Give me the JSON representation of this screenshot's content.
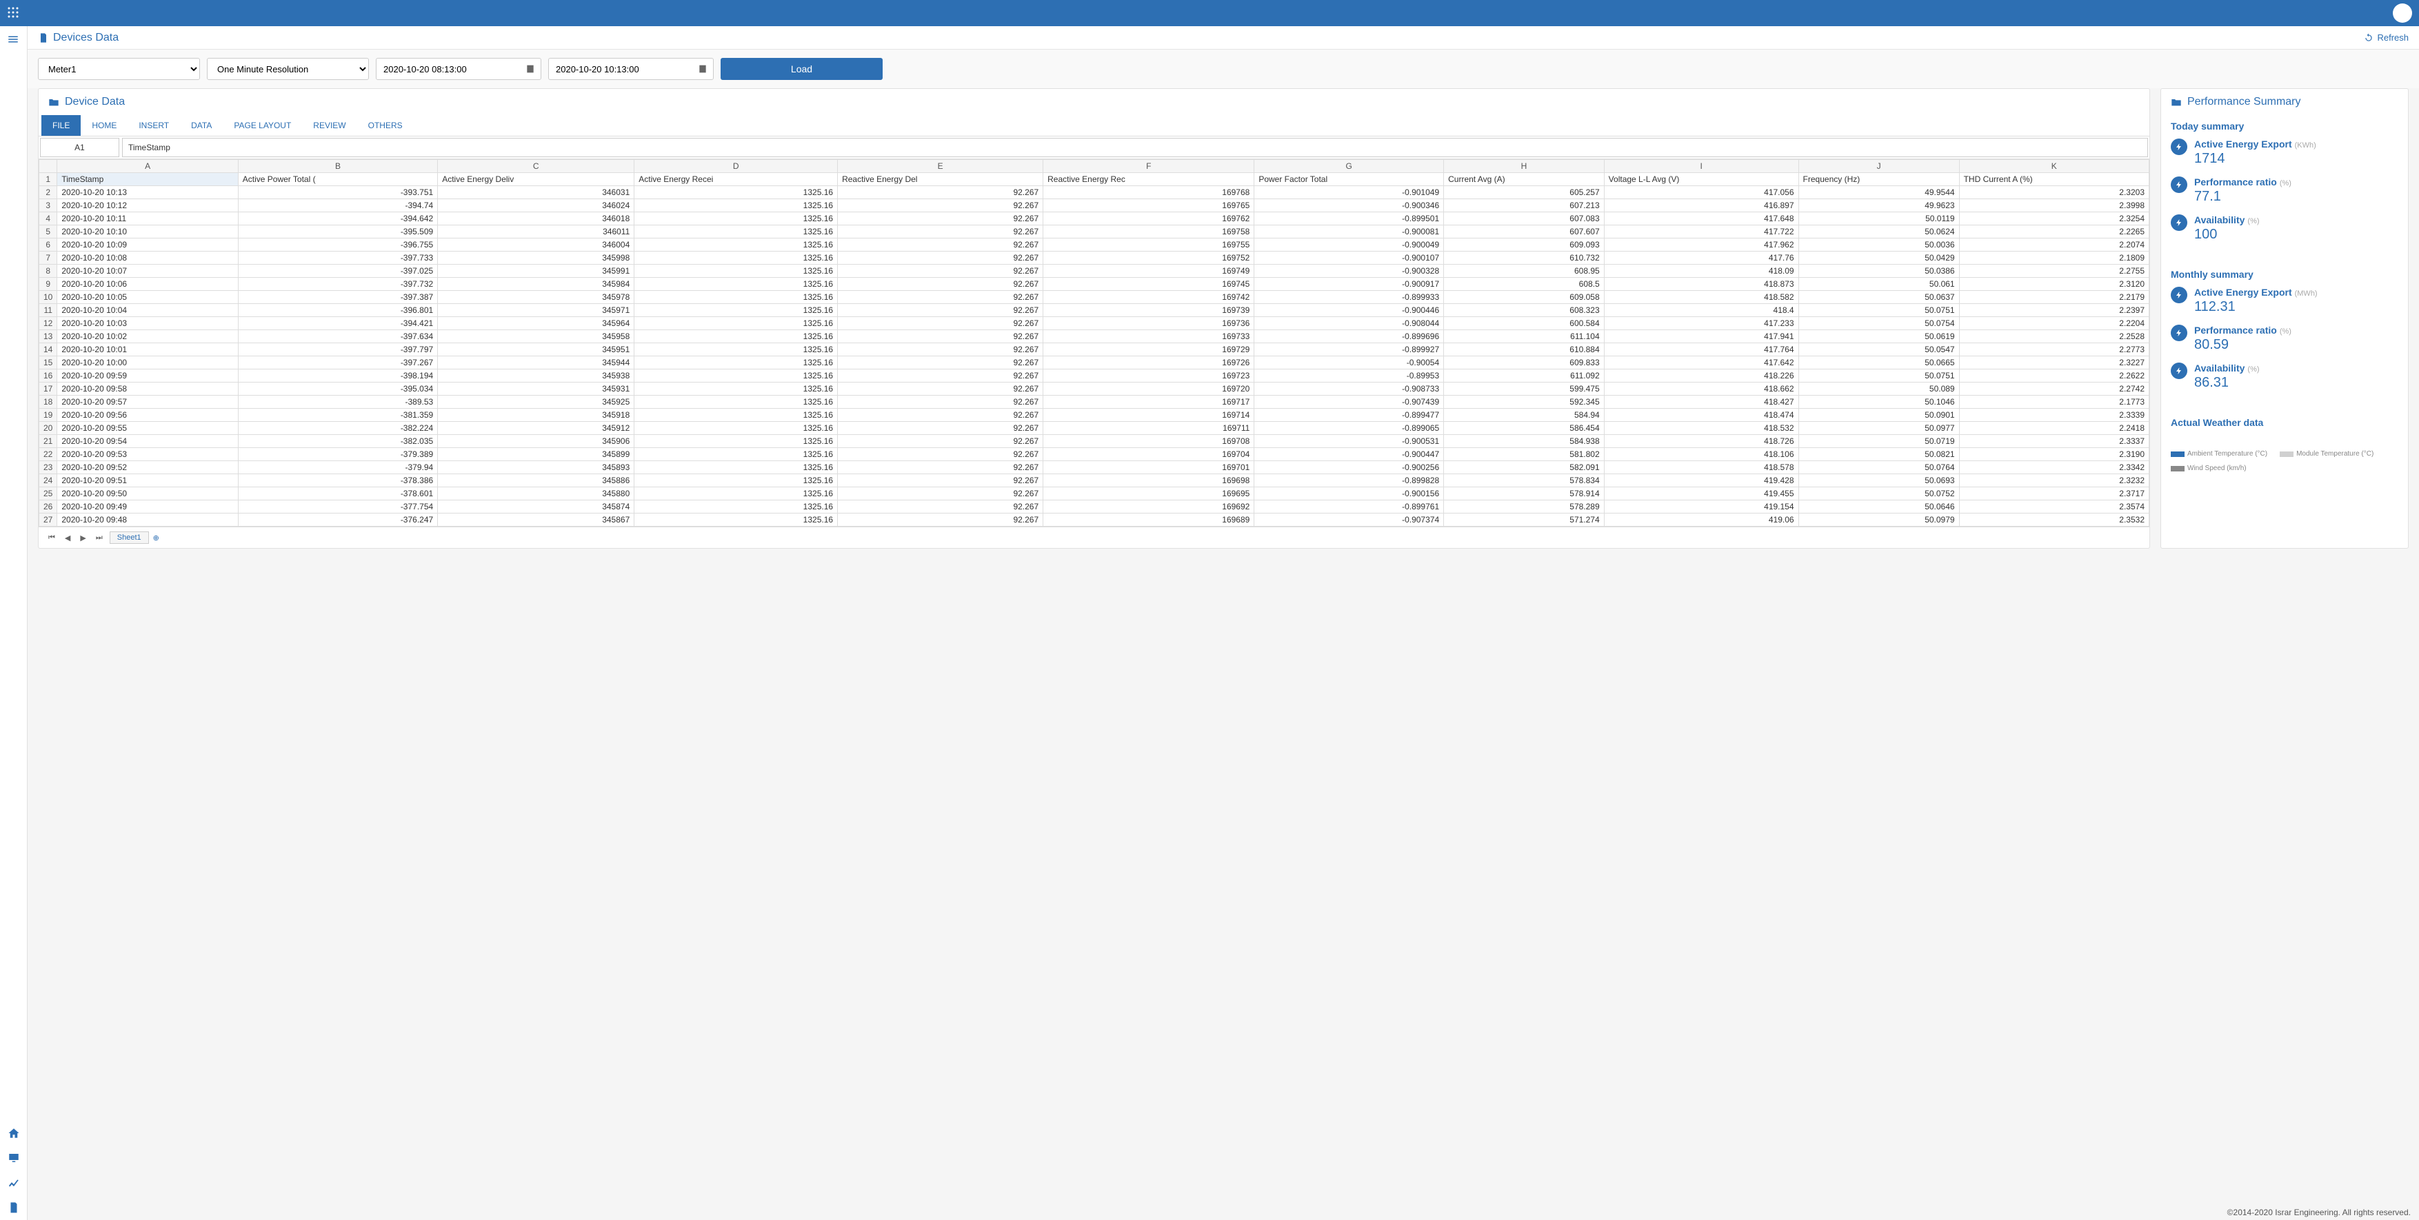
{
  "page_title": "Devices Data",
  "refresh_label": "Refresh",
  "controls": {
    "device_options": [
      "Meter1"
    ],
    "device_selected": "Meter1",
    "resolution_options": [
      "One Minute Resolution"
    ],
    "resolution_selected": "One Minute Resolution",
    "start_datetime": "2020-10-20 08:13:00",
    "end_datetime": "2020-10-20 10:13:00",
    "load_label": "Load"
  },
  "device_data": {
    "card_title": "Device Data",
    "menu_tabs": [
      "FILE",
      "HOME",
      "INSERT",
      "DATA",
      "PAGE LAYOUT",
      "REVIEW",
      "OTHERS"
    ],
    "active_menu_tab": "FILE",
    "cell_ref": "A1",
    "cell_formula": "TimeStamp",
    "col_letters": [
      "A",
      "B",
      "C",
      "D",
      "E",
      "F",
      "G",
      "H",
      "I",
      "J",
      "K"
    ],
    "columns": [
      "TimeStamp",
      "Active Power Total (",
      "Active Energy Deliv",
      "Active Energy Recei",
      "Reactive Energy Del",
      "Reactive Energy Rec",
      "Power Factor Total",
      "Current Avg (A)",
      "Voltage L-L Avg (V)",
      "Frequency (Hz)",
      "THD Current A (%)"
    ],
    "rows": [
      [
        "2020-10-20 10:13",
        "-393.751",
        "346031",
        "1325.16",
        "92.267",
        "169768",
        "-0.901049",
        "605.257",
        "417.056",
        "49.9544",
        "2.3203"
      ],
      [
        "2020-10-20 10:12",
        "-394.74",
        "346024",
        "1325.16",
        "92.267",
        "169765",
        "-0.900346",
        "607.213",
        "416.897",
        "49.9623",
        "2.3998"
      ],
      [
        "2020-10-20 10:11",
        "-394.642",
        "346018",
        "1325.16",
        "92.267",
        "169762",
        "-0.899501",
        "607.083",
        "417.648",
        "50.0119",
        "2.3254"
      ],
      [
        "2020-10-20 10:10",
        "-395.509",
        "346011",
        "1325.16",
        "92.267",
        "169758",
        "-0.900081",
        "607.607",
        "417.722",
        "50.0624",
        "2.2265"
      ],
      [
        "2020-10-20 10:09",
        "-396.755",
        "346004",
        "1325.16",
        "92.267",
        "169755",
        "-0.900049",
        "609.093",
        "417.962",
        "50.0036",
        "2.2074"
      ],
      [
        "2020-10-20 10:08",
        "-397.733",
        "345998",
        "1325.16",
        "92.267",
        "169752",
        "-0.900107",
        "610.732",
        "417.76",
        "50.0429",
        "2.1809"
      ],
      [
        "2020-10-20 10:07",
        "-397.025",
        "345991",
        "1325.16",
        "92.267",
        "169749",
        "-0.900328",
        "608.95",
        "418.09",
        "50.0386",
        "2.2755"
      ],
      [
        "2020-10-20 10:06",
        "-397.732",
        "345984",
        "1325.16",
        "92.267",
        "169745",
        "-0.900917",
        "608.5",
        "418.873",
        "50.061",
        "2.3120"
      ],
      [
        "2020-10-20 10:05",
        "-397.387",
        "345978",
        "1325.16",
        "92.267",
        "169742",
        "-0.899933",
        "609.058",
        "418.582",
        "50.0637",
        "2.2179"
      ],
      [
        "2020-10-20 10:04",
        "-396.801",
        "345971",
        "1325.16",
        "92.267",
        "169739",
        "-0.900446",
        "608.323",
        "418.4",
        "50.0751",
        "2.2397"
      ],
      [
        "2020-10-20 10:03",
        "-394.421",
        "345964",
        "1325.16",
        "92.267",
        "169736",
        "-0.908044",
        "600.584",
        "417.233",
        "50.0754",
        "2.2204"
      ],
      [
        "2020-10-20 10:02",
        "-397.634",
        "345958",
        "1325.16",
        "92.267",
        "169733",
        "-0.899696",
        "611.104",
        "417.941",
        "50.0619",
        "2.2528"
      ],
      [
        "2020-10-20 10:01",
        "-397.797",
        "345951",
        "1325.16",
        "92.267",
        "169729",
        "-0.899927",
        "610.884",
        "417.764",
        "50.0547",
        "2.2773"
      ],
      [
        "2020-10-20 10:00",
        "-397.267",
        "345944",
        "1325.16",
        "92.267",
        "169726",
        "-0.90054",
        "609.833",
        "417.642",
        "50.0665",
        "2.3227"
      ],
      [
        "2020-10-20 09:59",
        "-398.194",
        "345938",
        "1325.16",
        "92.267",
        "169723",
        "-0.89953",
        "611.092",
        "418.226",
        "50.0751",
        "2.2622"
      ],
      [
        "2020-10-20 09:58",
        "-395.034",
        "345931",
        "1325.16",
        "92.267",
        "169720",
        "-0.908733",
        "599.475",
        "418.662",
        "50.089",
        "2.2742"
      ],
      [
        "2020-10-20 09:57",
        "-389.53",
        "345925",
        "1325.16",
        "92.267",
        "169717",
        "-0.907439",
        "592.345",
        "418.427",
        "50.1046",
        "2.1773"
      ],
      [
        "2020-10-20 09:56",
        "-381.359",
        "345918",
        "1325.16",
        "92.267",
        "169714",
        "-0.899477",
        "584.94",
        "418.474",
        "50.0901",
        "2.3339"
      ],
      [
        "2020-10-20 09:55",
        "-382.224",
        "345912",
        "1325.16",
        "92.267",
        "169711",
        "-0.899065",
        "586.454",
        "418.532",
        "50.0977",
        "2.2418"
      ],
      [
        "2020-10-20 09:54",
        "-382.035",
        "345906",
        "1325.16",
        "92.267",
        "169708",
        "-0.900531",
        "584.938",
        "418.726",
        "50.0719",
        "2.3337"
      ],
      [
        "2020-10-20 09:53",
        "-379.389",
        "345899",
        "1325.16",
        "92.267",
        "169704",
        "-0.900447",
        "581.802",
        "418.106",
        "50.0821",
        "2.3190"
      ],
      [
        "2020-10-20 09:52",
        "-379.94",
        "345893",
        "1325.16",
        "92.267",
        "169701",
        "-0.900256",
        "582.091",
        "418.578",
        "50.0764",
        "2.3342"
      ],
      [
        "2020-10-20 09:51",
        "-378.386",
        "345886",
        "1325.16",
        "92.267",
        "169698",
        "-0.899828",
        "578.834",
        "419.428",
        "50.0693",
        "2.3232"
      ],
      [
        "2020-10-20 09:50",
        "-378.601",
        "345880",
        "1325.16",
        "92.267",
        "169695",
        "-0.900156",
        "578.914",
        "419.455",
        "50.0752",
        "2.3717"
      ],
      [
        "2020-10-20 09:49",
        "-377.754",
        "345874",
        "1325.16",
        "92.267",
        "169692",
        "-0.899761",
        "578.289",
        "419.154",
        "50.0646",
        "2.3574"
      ],
      [
        "2020-10-20 09:48",
        "-376.247",
        "345867",
        "1325.16",
        "92.267",
        "169689",
        "-0.907374",
        "571.274",
        "419.06",
        "50.0979",
        "2.3532"
      ]
    ],
    "sheet_name": "Sheet1"
  },
  "summary": {
    "card_title": "Performance Summary",
    "today": {
      "heading": "Today summary",
      "metrics": [
        {
          "label": "Active Energy Export",
          "unit": "(KWh)",
          "value": "1714"
        },
        {
          "label": "Performance ratio",
          "unit": "(%)",
          "value": "77.1"
        },
        {
          "label": "Availability",
          "unit": "(%)",
          "value": "100"
        }
      ]
    },
    "monthly": {
      "heading": "Monthly summary",
      "metrics": [
        {
          "label": "Active Energy Export",
          "unit": "(MWh)",
          "value": "112.31"
        },
        {
          "label": "Performance ratio",
          "unit": "(%)",
          "value": "80.59"
        },
        {
          "label": "Availability",
          "unit": "(%)",
          "value": "86.31"
        }
      ]
    },
    "weather": {
      "heading": "Actual Weather data",
      "legend": [
        {
          "label": "Ambient Temperature (°C)",
          "color": "#2d6fb3"
        },
        {
          "label": "Module Temperature (°C)",
          "color": "#d0d0d0"
        },
        {
          "label": "Wind Speed (km/h)",
          "color": "#888888"
        }
      ]
    }
  },
  "footer": "©2014-2020 Israr Engineering. All rights reserved."
}
